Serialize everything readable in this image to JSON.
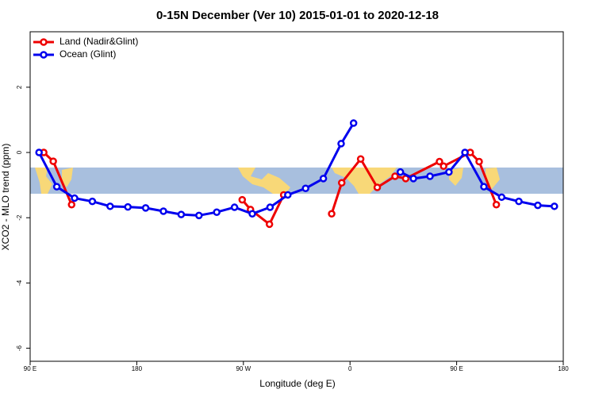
{
  "chart_data": {
    "type": "line",
    "title": "0-15N December (Ver 10)   2015-01-01 to 2020-12-18",
    "x_label": "Longitude (deg E)",
    "y_label": "XCO2 - MLO trend (ppm)",
    "xlim": [
      90,
      540
    ],
    "ylim": [
      -6.4,
      3.7
    ],
    "xticks": [
      {
        "value": 90,
        "label": "90 E"
      },
      {
        "value": 180,
        "label": "180"
      },
      {
        "value": 270,
        "label": "90 W"
      },
      {
        "value": 360,
        "label": "0"
      },
      {
        "value": 450,
        "label": "90 E"
      },
      {
        "value": 540,
        "label": "180"
      }
    ],
    "yticks": [
      -6,
      -4,
      -2,
      0,
      2
    ],
    "legend": "top-left",
    "series": [
      {
        "name": "Land (Nadir&Glint)",
        "color": "#ee0000",
        "x": [
          101.5,
          109.5,
          125,
          200,
          269,
          276,
          292,
          304,
          330,
          344.5,
          353,
          369,
          383,
          398,
          407,
          435.5,
          439,
          461.5,
          469,
          483.5
        ],
        "values": [
          0.0,
          -0.27,
          -1.6,
          null,
          -1.45,
          -1.75,
          -2.2,
          -1.3,
          null,
          -1.88,
          -0.93,
          -0.2,
          -1.07,
          -0.73,
          -0.8,
          -0.28,
          -0.42,
          0.0,
          -0.28,
          -1.6
        ]
      },
      {
        "name": "Ocean (Glint)",
        "color": "#0000ee",
        "x": [
          97.5,
          112.5,
          127.5,
          142.5,
          157.5,
          172.5,
          187.5,
          202.5,
          217.5,
          232.5,
          247.5,
          262.5,
          277.5,
          292.5,
          307.5,
          322.5,
          337.5,
          352.5,
          363,
          382.5,
          402.5,
          413.5,
          427.5,
          443.5,
          457,
          473,
          488,
          502.5,
          518.5,
          532.5
        ],
        "values": [
          0.0,
          -1.05,
          -1.4,
          -1.5,
          -1.65,
          -1.67,
          -1.7,
          -1.8,
          -1.9,
          -1.93,
          -1.83,
          -1.68,
          -1.88,
          -1.68,
          -1.3,
          -1.1,
          -0.8,
          0.27,
          0.9,
          null,
          -0.6,
          -0.8,
          -0.73,
          -0.6,
          0.0,
          -1.05,
          -1.37,
          -1.5,
          -1.62,
          -1.65
        ]
      }
    ]
  }
}
